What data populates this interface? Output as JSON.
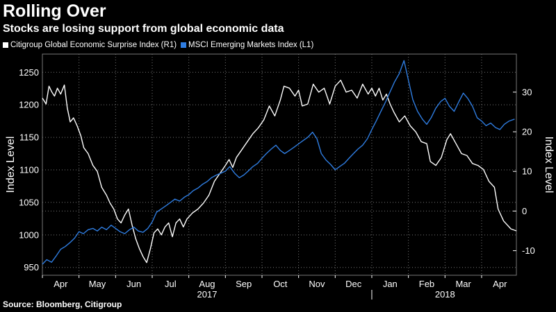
{
  "title": "Rolling Over",
  "subtitle": "Stocks are losing support from global economic data",
  "legend": {
    "citi": "Citigroup Global Economic Surprise Index (R1)",
    "msci": "MSCI Emerging Markets Index  (L1)"
  },
  "source": "Source: Bloomberg, Citigroup",
  "colors": {
    "citi": "#ffffff",
    "msci": "#2f7de1",
    "grid": "#777777",
    "background": "#000000"
  },
  "chart_data": {
    "type": "line",
    "title": "Rolling Over",
    "subtitle": "Stocks are losing support from global economic data",
    "ylabel_left": "Index Level",
    "ylabel_right": "Index Level",
    "xlabel": "",
    "ylim_left": [
      938,
      1278
    ],
    "ylim_right": [
      -16.2,
      39.6
    ],
    "yticks_left": [
      950,
      1000,
      1050,
      1100,
      1150,
      1200,
      1250
    ],
    "yticks_right": [
      -10,
      0,
      10,
      20,
      30
    ],
    "x_range_months": [
      0,
      12.95
    ],
    "months": [
      "Apr",
      "May",
      "Jun",
      "Jul",
      "Aug",
      "Sep",
      "Oct",
      "Nov",
      "Dec",
      "Jan",
      "Feb",
      "Mar",
      "Apr"
    ],
    "years": [
      "2017",
      "2018"
    ],
    "grid": true,
    "series": [
      {
        "name": "Citigroup Global Economic Surprise Index (R1)",
        "axis": "right",
        "color": "#ffffff",
        "x": [
          0.0,
          0.1,
          0.18,
          0.26,
          0.33,
          0.41,
          0.5,
          0.6,
          0.68,
          0.76,
          0.85,
          0.95,
          1.05,
          1.13,
          1.25,
          1.38,
          1.5,
          1.62,
          1.75,
          1.85,
          1.95,
          2.05,
          2.15,
          2.25,
          2.35,
          2.45,
          2.55,
          2.65,
          2.75,
          2.85,
          2.95,
          3.05,
          3.15,
          3.25,
          3.35,
          3.45,
          3.55,
          3.65,
          3.75,
          3.85,
          3.95,
          4.1,
          4.25,
          4.4,
          4.55,
          4.7,
          4.85,
          5.0,
          5.1,
          5.2,
          5.3,
          5.45,
          5.6,
          5.75,
          5.9,
          6.05,
          6.2,
          6.35,
          6.5,
          6.6,
          6.75,
          6.9,
          7.0,
          7.1,
          7.25,
          7.4,
          7.55,
          7.7,
          7.85,
          8.0,
          8.15,
          8.3,
          8.45,
          8.6,
          8.75,
          8.9,
          9.0,
          9.1,
          9.2,
          9.3,
          9.4,
          9.5,
          9.6,
          9.75,
          9.9,
          10.05,
          10.2,
          10.35,
          10.5,
          10.6,
          10.75,
          10.9,
          11.05,
          11.15,
          11.3,
          11.45,
          11.6,
          11.75,
          11.9,
          12.05,
          12.2,
          12.35,
          12.45,
          12.6,
          12.8,
          12.95
        ],
        "y": [
          28.5,
          27.0,
          31.5,
          30.0,
          29.0,
          31.0,
          29.5,
          31.8,
          26.0,
          22.5,
          23.5,
          21.5,
          19.0,
          16.0,
          14.5,
          11.5,
          10.0,
          6.0,
          4.0,
          2.0,
          0.5,
          -2.0,
          -3.0,
          -1.0,
          0.5,
          -3.5,
          -7.0,
          -9.5,
          -11.5,
          -13.0,
          -9.5,
          -5.5,
          -4.5,
          -6.0,
          -4.0,
          -3.0,
          -6.5,
          -3.0,
          -2.0,
          -4.0,
          -2.0,
          -0.5,
          0.5,
          2.0,
          4.0,
          7.5,
          9.5,
          11.5,
          13.0,
          11.0,
          13.5,
          15.5,
          17.5,
          19.5,
          21.0,
          23.0,
          26.5,
          24.0,
          28.0,
          31.5,
          31.0,
          29.0,
          30.5,
          26.5,
          27.0,
          32.0,
          30.0,
          31.0,
          27.0,
          31.5,
          33.0,
          30.0,
          30.5,
          28.5,
          32.0,
          29.5,
          31.0,
          29.0,
          31.0,
          28.0,
          29.5,
          27.0,
          25.0,
          22.5,
          24.0,
          21.5,
          20.0,
          17.5,
          17.0,
          12.5,
          11.5,
          13.5,
          18.0,
          19.5,
          17.0,
          14.5,
          14.0,
          12.0,
          11.5,
          10.5,
          7.5,
          6.0,
          0.5,
          -2.5,
          -4.5,
          -5.0
        ]
      },
      {
        "name": "MSCI Emerging Markets Index (L1)",
        "axis": "left",
        "color": "#2f7de1",
        "x": [
          0.0,
          0.12,
          0.25,
          0.38,
          0.5,
          0.62,
          0.75,
          0.88,
          1.0,
          1.12,
          1.25,
          1.38,
          1.5,
          1.62,
          1.75,
          1.88,
          2.0,
          2.12,
          2.25,
          2.38,
          2.5,
          2.62,
          2.75,
          2.88,
          3.0,
          3.12,
          3.25,
          3.38,
          3.5,
          3.62,
          3.75,
          3.88,
          4.0,
          4.12,
          4.25,
          4.38,
          4.5,
          4.62,
          4.75,
          4.88,
          5.0,
          5.12,
          5.25,
          5.38,
          5.5,
          5.62,
          5.75,
          5.88,
          6.0,
          6.12,
          6.25,
          6.38,
          6.5,
          6.62,
          6.75,
          6.88,
          7.0,
          7.12,
          7.25,
          7.38,
          7.5,
          7.62,
          7.75,
          7.88,
          8.0,
          8.12,
          8.25,
          8.38,
          8.5,
          8.62,
          8.75,
          8.88,
          9.0,
          9.12,
          9.25,
          9.38,
          9.5,
          9.62,
          9.75,
          9.88,
          10.0,
          10.12,
          10.25,
          10.38,
          10.5,
          10.62,
          10.75,
          10.88,
          11.0,
          11.12,
          11.25,
          11.38,
          11.5,
          11.62,
          11.75,
          11.88,
          12.0,
          12.12,
          12.25,
          12.38,
          12.5,
          12.62,
          12.75,
          12.9
        ],
        "y": [
          955,
          962,
          958,
          968,
          978,
          982,
          988,
          995,
          1005,
          1002,
          1008,
          1010,
          1006,
          1012,
          1008,
          1015,
          1010,
          1005,
          1002,
          1008,
          1012,
          1006,
          1004,
          1010,
          1020,
          1035,
          1040,
          1045,
          1050,
          1055,
          1052,
          1058,
          1062,
          1068,
          1072,
          1078,
          1082,
          1088,
          1092,
          1095,
          1098,
          1105,
          1095,
          1088,
          1092,
          1098,
          1105,
          1110,
          1118,
          1125,
          1132,
          1138,
          1130,
          1125,
          1130,
          1135,
          1140,
          1145,
          1150,
          1158,
          1148,
          1125,
          1115,
          1108,
          1100,
          1105,
          1110,
          1118,
          1125,
          1132,
          1138,
          1148,
          1162,
          1175,
          1190,
          1205,
          1220,
          1235,
          1248,
          1268,
          1238,
          1208,
          1190,
          1178,
          1170,
          1180,
          1195,
          1205,
          1210,
          1198,
          1190,
          1205,
          1218,
          1210,
          1198,
          1180,
          1175,
          1168,
          1172,
          1165,
          1162,
          1170,
          1175,
          1178
        ]
      }
    ]
  }
}
